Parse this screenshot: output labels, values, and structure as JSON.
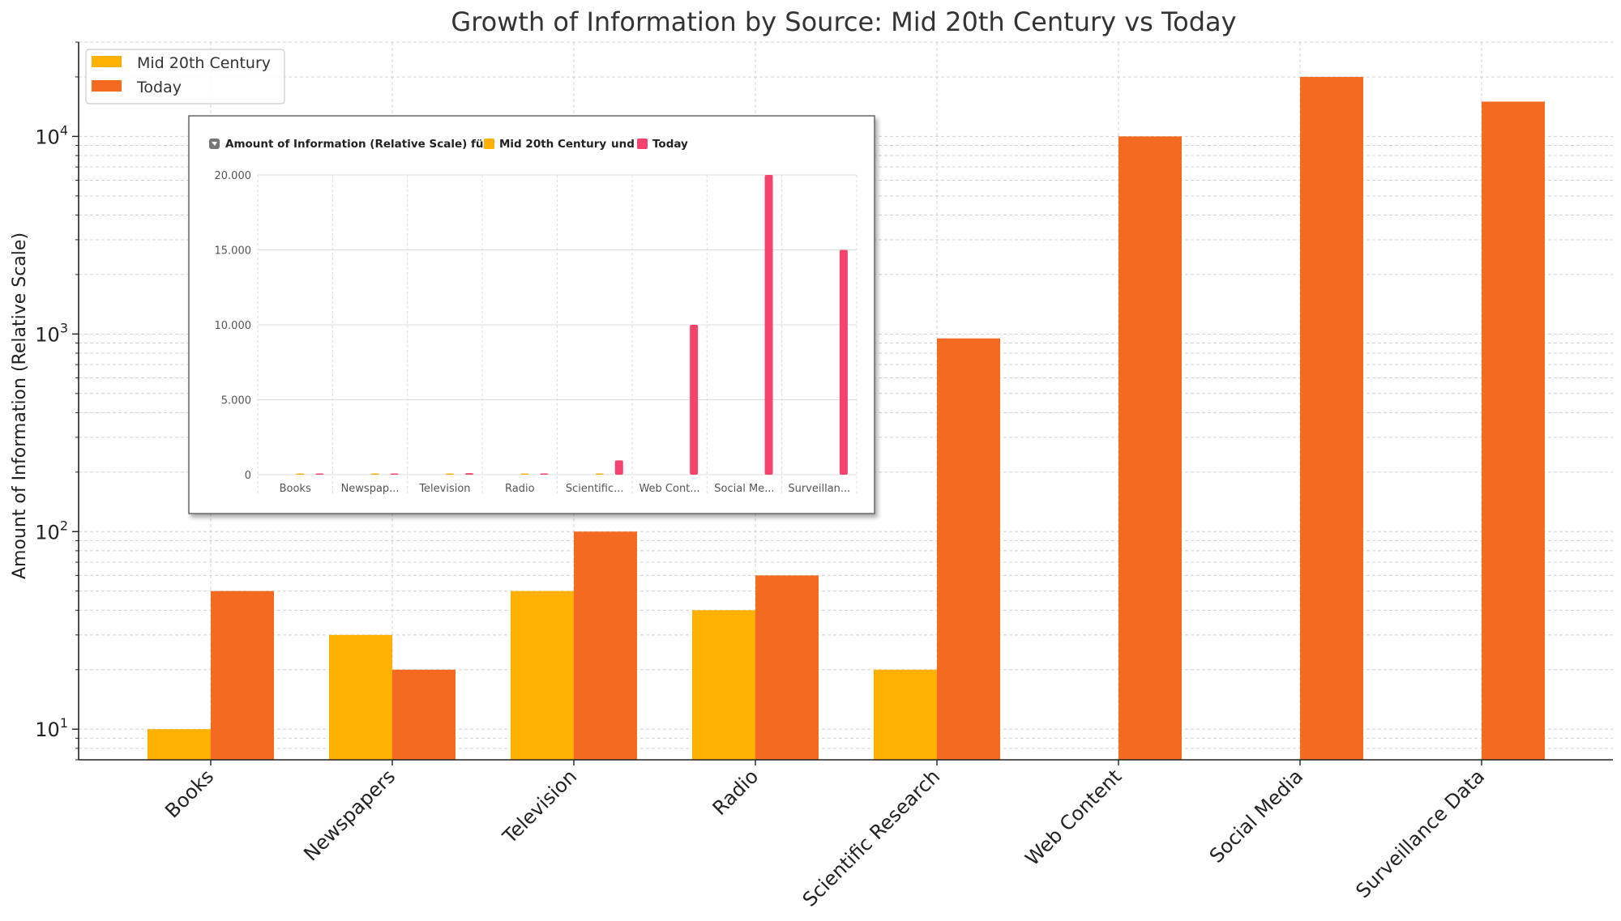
{
  "chart_data": [
    {
      "type": "bar",
      "title": "Growth of Information by Source: Mid 20th Century vs Today",
      "xlabel": "",
      "ylabel": "Amount of Information (Relative Scale)",
      "yscale": "log",
      "ylim": [
        7,
        30000
      ],
      "grid": true,
      "legend_position": "top-left",
      "categories": [
        "Books",
        "Newspapers",
        "Television",
        "Radio",
        "Scientific Research",
        "Web Content",
        "Social Media",
        "Surveillance Data"
      ],
      "series": [
        {
          "name": "Mid 20th Century",
          "color": "#FFB000",
          "values": [
            10,
            30,
            50,
            40,
            20,
            0,
            0,
            0
          ]
        },
        {
          "name": "Today",
          "color": "#F46A21",
          "values": [
            50,
            20,
            100,
            60,
            950,
            10000,
            20000,
            15000
          ]
        }
      ],
      "yticks": [
        {
          "base": "10",
          "exp": "1",
          "value": 10
        },
        {
          "base": "10",
          "exp": "2",
          "value": 100
        },
        {
          "base": "10",
          "exp": "3",
          "value": 1000
        },
        {
          "base": "10",
          "exp": "4",
          "value": 10000
        }
      ]
    },
    {
      "type": "bar",
      "title": "",
      "legend_prefix": "Amount of Information (Relative Scale) für",
      "legend_conjunction": "und",
      "yscale": "linear",
      "ylim": [
        0,
        20000
      ],
      "yticks": [
        "0",
        "5.000",
        "10.000",
        "15.000",
        "20.000"
      ],
      "ytick_values": [
        0,
        5000,
        10000,
        15000,
        20000
      ],
      "categories": [
        "Books",
        "Newspap...",
        "Television",
        "Radio",
        "Scientific...",
        "Web Cont...",
        "Social Me...",
        "Surveillan..."
      ],
      "series": [
        {
          "name": "Mid 20th Century",
          "color": "#FFB000",
          "values": [
            10,
            30,
            50,
            40,
            20,
            0,
            0,
            0
          ]
        },
        {
          "name": "Today",
          "color": "#F4436C",
          "values": [
            50,
            20,
            100,
            60,
            950,
            10000,
            20000,
            15000
          ]
        }
      ]
    }
  ]
}
